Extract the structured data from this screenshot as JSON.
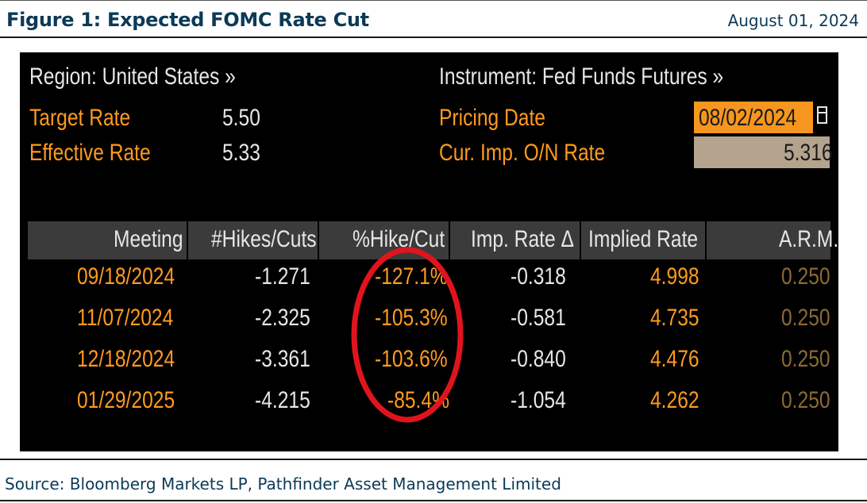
{
  "header": {
    "title": "Figure 1: Expected FOMC Rate Cut",
    "date": "August 01, 2024"
  },
  "panel": {
    "region": "Region: United States »",
    "instrument": "Instrument: Fed Funds Futures »",
    "target_rate_label": "Target Rate",
    "target_rate_value": "5.50",
    "effective_rate_label": "Effective Rate",
    "effective_rate_value": "5.33",
    "pricing_date_label": "Pricing Date",
    "pricing_date_value": "08/02/2024",
    "cur_imp_label": "Cur. Imp. O/N Rate",
    "cur_imp_value": "5.316"
  },
  "table": {
    "columns": [
      "Meeting",
      "#Hikes/Cuts",
      "%Hike/Cut",
      "Imp. Rate Δ",
      "Implied Rate",
      "A.R.M."
    ],
    "rows": [
      [
        "09/18/2024",
        "-1.271",
        "-127.1%",
        "-0.318",
        "4.998",
        "0.250"
      ],
      [
        "11/07/2024",
        "-2.325",
        "-105.3%",
        "-0.581",
        "4.735",
        "0.250"
      ],
      [
        "12/18/2024",
        "-3.361",
        "-103.6%",
        "-0.840",
        "4.476",
        "0.250"
      ],
      [
        "01/29/2025",
        "-4.215",
        "-85.4%",
        "-1.054",
        "4.262",
        "0.250"
      ]
    ]
  },
  "colors": {
    "orange": "#ff9a1f",
    "annotation_circle": "#e0141c",
    "arm_text": "#8a6a35"
  },
  "footer": {
    "source": "Source: Bloomberg Markets LP, Pathfinder Asset Management Limited"
  }
}
